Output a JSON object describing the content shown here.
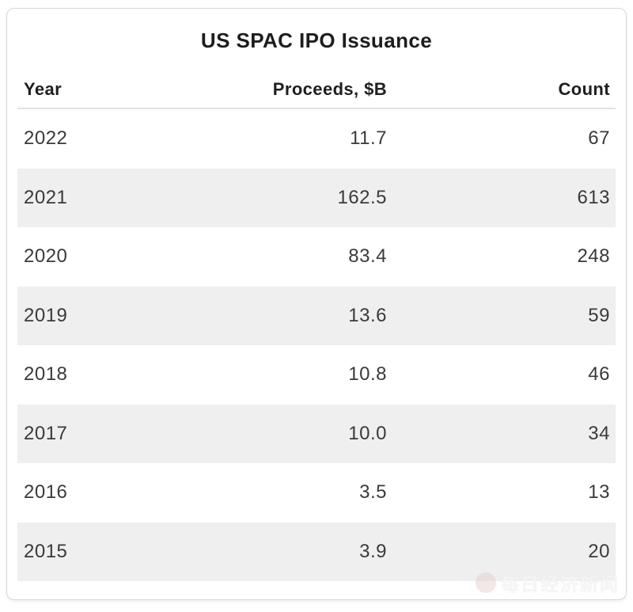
{
  "card": {
    "title": "US SPAC IPO Issuance"
  },
  "table": {
    "columns": [
      "Year",
      "Proceeds, $B",
      "Count"
    ],
    "rows": [
      {
        "year": "2022",
        "proceeds": "11.7",
        "count": "67"
      },
      {
        "year": "2021",
        "proceeds": "162.5",
        "count": "613"
      },
      {
        "year": "2020",
        "proceeds": "83.4",
        "count": "248"
      },
      {
        "year": "2019",
        "proceeds": "13.6",
        "count": "59"
      },
      {
        "year": "2018",
        "proceeds": "10.8",
        "count": "46"
      },
      {
        "year": "2017",
        "proceeds": "10.0",
        "count": "34"
      },
      {
        "year": "2016",
        "proceeds": "3.5",
        "count": "13"
      },
      {
        "year": "2015",
        "proceeds": "3.9",
        "count": "20"
      }
    ],
    "zebra_stripe_rows": [
      "2021",
      "2019",
      "2017",
      "2015"
    ]
  },
  "watermark": {
    "text": "每日经济新闻",
    "logo": "circle-logo"
  },
  "colors": {
    "card_background": "#ffffff",
    "card_border": "#d7d7d7",
    "row_stripe": "#efefef",
    "header_underline": "#e3e3e3",
    "title_text": "#1d1d1d",
    "cell_text": "#3a3a3a"
  },
  "chart_data": {
    "type": "table",
    "title": "US SPAC IPO Issuance",
    "columns": [
      "Year",
      "Proceeds, $B",
      "Count"
    ],
    "rows": [
      [
        2022,
        11.7,
        67
      ],
      [
        2021,
        162.5,
        613
      ],
      [
        2020,
        83.4,
        248
      ],
      [
        2019,
        13.6,
        59
      ],
      [
        2018,
        10.8,
        46
      ],
      [
        2017,
        10.0,
        34
      ],
      [
        2016,
        3.5,
        13
      ],
      [
        2015,
        3.9,
        20
      ]
    ],
    "notes": "Zebra-striped static table; Proceeds and Count columns right-aligned; Year column left-aligned."
  }
}
